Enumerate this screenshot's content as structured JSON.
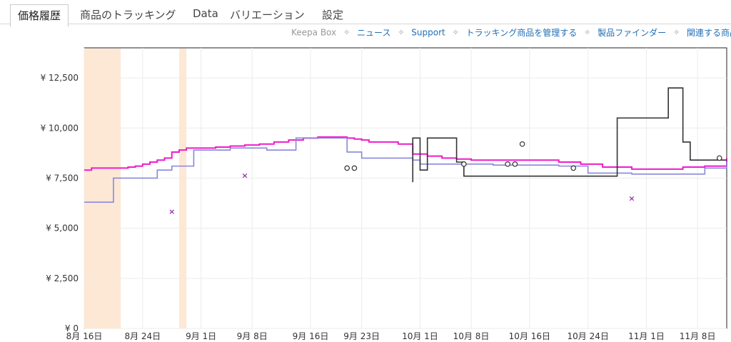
{
  "tabs": [
    {
      "label": "価格履歴",
      "active": true
    },
    {
      "label": "商品のトラッキング",
      "active": false
    },
    {
      "label": "Data",
      "active": false
    },
    {
      "label": "バリエーション",
      "active": false
    },
    {
      "label": "設定",
      "active": false
    }
  ],
  "links": [
    "Keepa Box",
    "ニュース",
    "Support",
    "トラッキング商品を管理する",
    "製品ファインダー",
    "関連する商品を探す"
  ],
  "link_separator_icon": "four-point-star-icon",
  "colors": {
    "amazon_price": "#ee1ccc",
    "new_price": "#8888dd",
    "used_price": "#333333",
    "out_of_stock_shading": "#fde6d2",
    "cross_marker": "#9b2fb0"
  },
  "chart_data": {
    "type": "line",
    "x_axis_type": "date",
    "xlim": [
      "2024-08-16",
      "2024-11-12"
    ],
    "ylim": [
      0,
      14000
    ],
    "y_ticks": [
      0,
      2500,
      5000,
      7500,
      10000,
      12500
    ],
    "y_tick_labels": [
      "¥ 0",
      "¥ 2,500",
      "¥ 5,000",
      "¥ 7,500",
      "¥ 10,000",
      "¥ 12,500"
    ],
    "x_ticks": [
      "2024-08-16",
      "2024-08-24",
      "2024-09-01",
      "2024-09-08",
      "2024-09-16",
      "2024-09-23",
      "2024-10-01",
      "2024-10-08",
      "2024-10-16",
      "2024-10-24",
      "2024-11-01",
      "2024-11-08"
    ],
    "x_tick_labels": [
      "8月 16日",
      "8月 24日",
      "9月 1日",
      "9月 8日",
      "9月 16日",
      "9月 23日",
      "10月 1日",
      "10月 8日",
      "10月 16日",
      "10月 24日",
      "11月 1日",
      "11月 8日"
    ],
    "grid": true,
    "series": [
      {
        "x": [
          "2024-08-16",
          "2024-08-17",
          "2024-08-18",
          "2024-08-19",
          "2024-08-20",
          "2024-08-21",
          "2024-08-22",
          "2024-08-23",
          "2024-08-24",
          "2024-08-25",
          "2024-08-26",
          "2024-08-27",
          "2024-08-28",
          "2024-08-29",
          "2024-08-30",
          "2024-08-31",
          "2024-09-01",
          "2024-09-03",
          "2024-09-05",
          "2024-09-07",
          "2024-09-09",
          "2024-09-11",
          "2024-09-13",
          "2024-09-15",
          "2024-09-17",
          "2024-09-19",
          "2024-09-21",
          "2024-09-22",
          "2024-09-23",
          "2024-09-24",
          "2024-09-26",
          "2024-09-28",
          "2024-09-30",
          "2024-10-02",
          "2024-10-04",
          "2024-10-06",
          "2024-10-08",
          "2024-10-12",
          "2024-10-16",
          "2024-10-20",
          "2024-10-23",
          "2024-10-26",
          "2024-10-30",
          "2024-11-03",
          "2024-11-06",
          "2024-11-09",
          "2024-11-12"
        ],
        "y": [
          7900,
          8000,
          8000,
          8000,
          8000,
          8000,
          8050,
          8100,
          8200,
          8300,
          8400,
          8500,
          8800,
          8900,
          9000,
          9000,
          9000,
          9050,
          9100,
          9150,
          9200,
          9300,
          9400,
          9500,
          9550,
          9550,
          9500,
          9450,
          9400,
          9300,
          9300,
          9200,
          8700,
          8600,
          8500,
          8450,
          8400,
          8400,
          8400,
          8300,
          8200,
          8050,
          7950,
          7950,
          8050,
          8100,
          8500
        ]
      },
      {
        "x": [
          "2024-08-16",
          "2024-08-20",
          "2024-08-20",
          "2024-08-24",
          "2024-08-26",
          "2024-08-28",
          "2024-08-31",
          "2024-09-05",
          "2024-09-10",
          "2024-09-14",
          "2024-09-18",
          "2024-09-21",
          "2024-09-23",
          "2024-09-26",
          "2024-09-30",
          "2024-10-01",
          "2024-10-04",
          "2024-10-08",
          "2024-10-11",
          "2024-10-16",
          "2024-10-20",
          "2024-10-24",
          "2024-10-30",
          "2024-11-05",
          "2024-11-09",
          "2024-11-12"
        ],
        "y": [
          6300,
          6300,
          7500,
          7500,
          7900,
          8100,
          8900,
          9000,
          8900,
          9500,
          9500,
          8800,
          8500,
          8500,
          8400,
          8200,
          8200,
          8200,
          8150,
          8150,
          8100,
          7750,
          7700,
          7700,
          8000,
          8300
        ]
      },
      {
        "x": [
          "2024-09-30",
          "2024-09-30",
          "2024-10-01",
          "2024-10-01",
          "2024-10-02",
          "2024-10-06",
          "2024-10-07",
          "2024-10-08",
          "2024-10-28",
          "2024-11-03",
          "2024-11-04",
          "2024-11-06",
          "2024-11-06",
          "2024-11-07",
          "2024-11-12"
        ],
        "y": [
          7300,
          9500,
          9500,
          7900,
          9500,
          8300,
          7600,
          7600,
          10500,
          10500,
          12000,
          12000,
          9300,
          8400,
          8400
        ]
      }
    ],
    "x_markers": [
      {
        "x": "2024-08-28",
        "y": 5850
      },
      {
        "x": "2024-09-07",
        "y": 7650
      },
      {
        "x": "2024-10-30",
        "y": 6500
      }
    ],
    "circle_markers": [
      {
        "x": "2024-09-21",
        "y": 8000
      },
      {
        "x": "2024-09-22",
        "y": 8000
      },
      {
        "x": "2024-10-07",
        "y": 8200
      },
      {
        "x": "2024-10-13",
        "y": 8200
      },
      {
        "x": "2024-10-14",
        "y": 8200
      },
      {
        "x": "2024-10-15",
        "y": 9200
      },
      {
        "x": "2024-10-22",
        "y": 8000
      },
      {
        "x": "2024-11-11",
        "y": 8500
      }
    ],
    "shaded_ranges": [
      [
        "2024-08-16",
        "2024-08-21"
      ],
      [
        "2024-08-29",
        "2024-08-30"
      ]
    ]
  }
}
